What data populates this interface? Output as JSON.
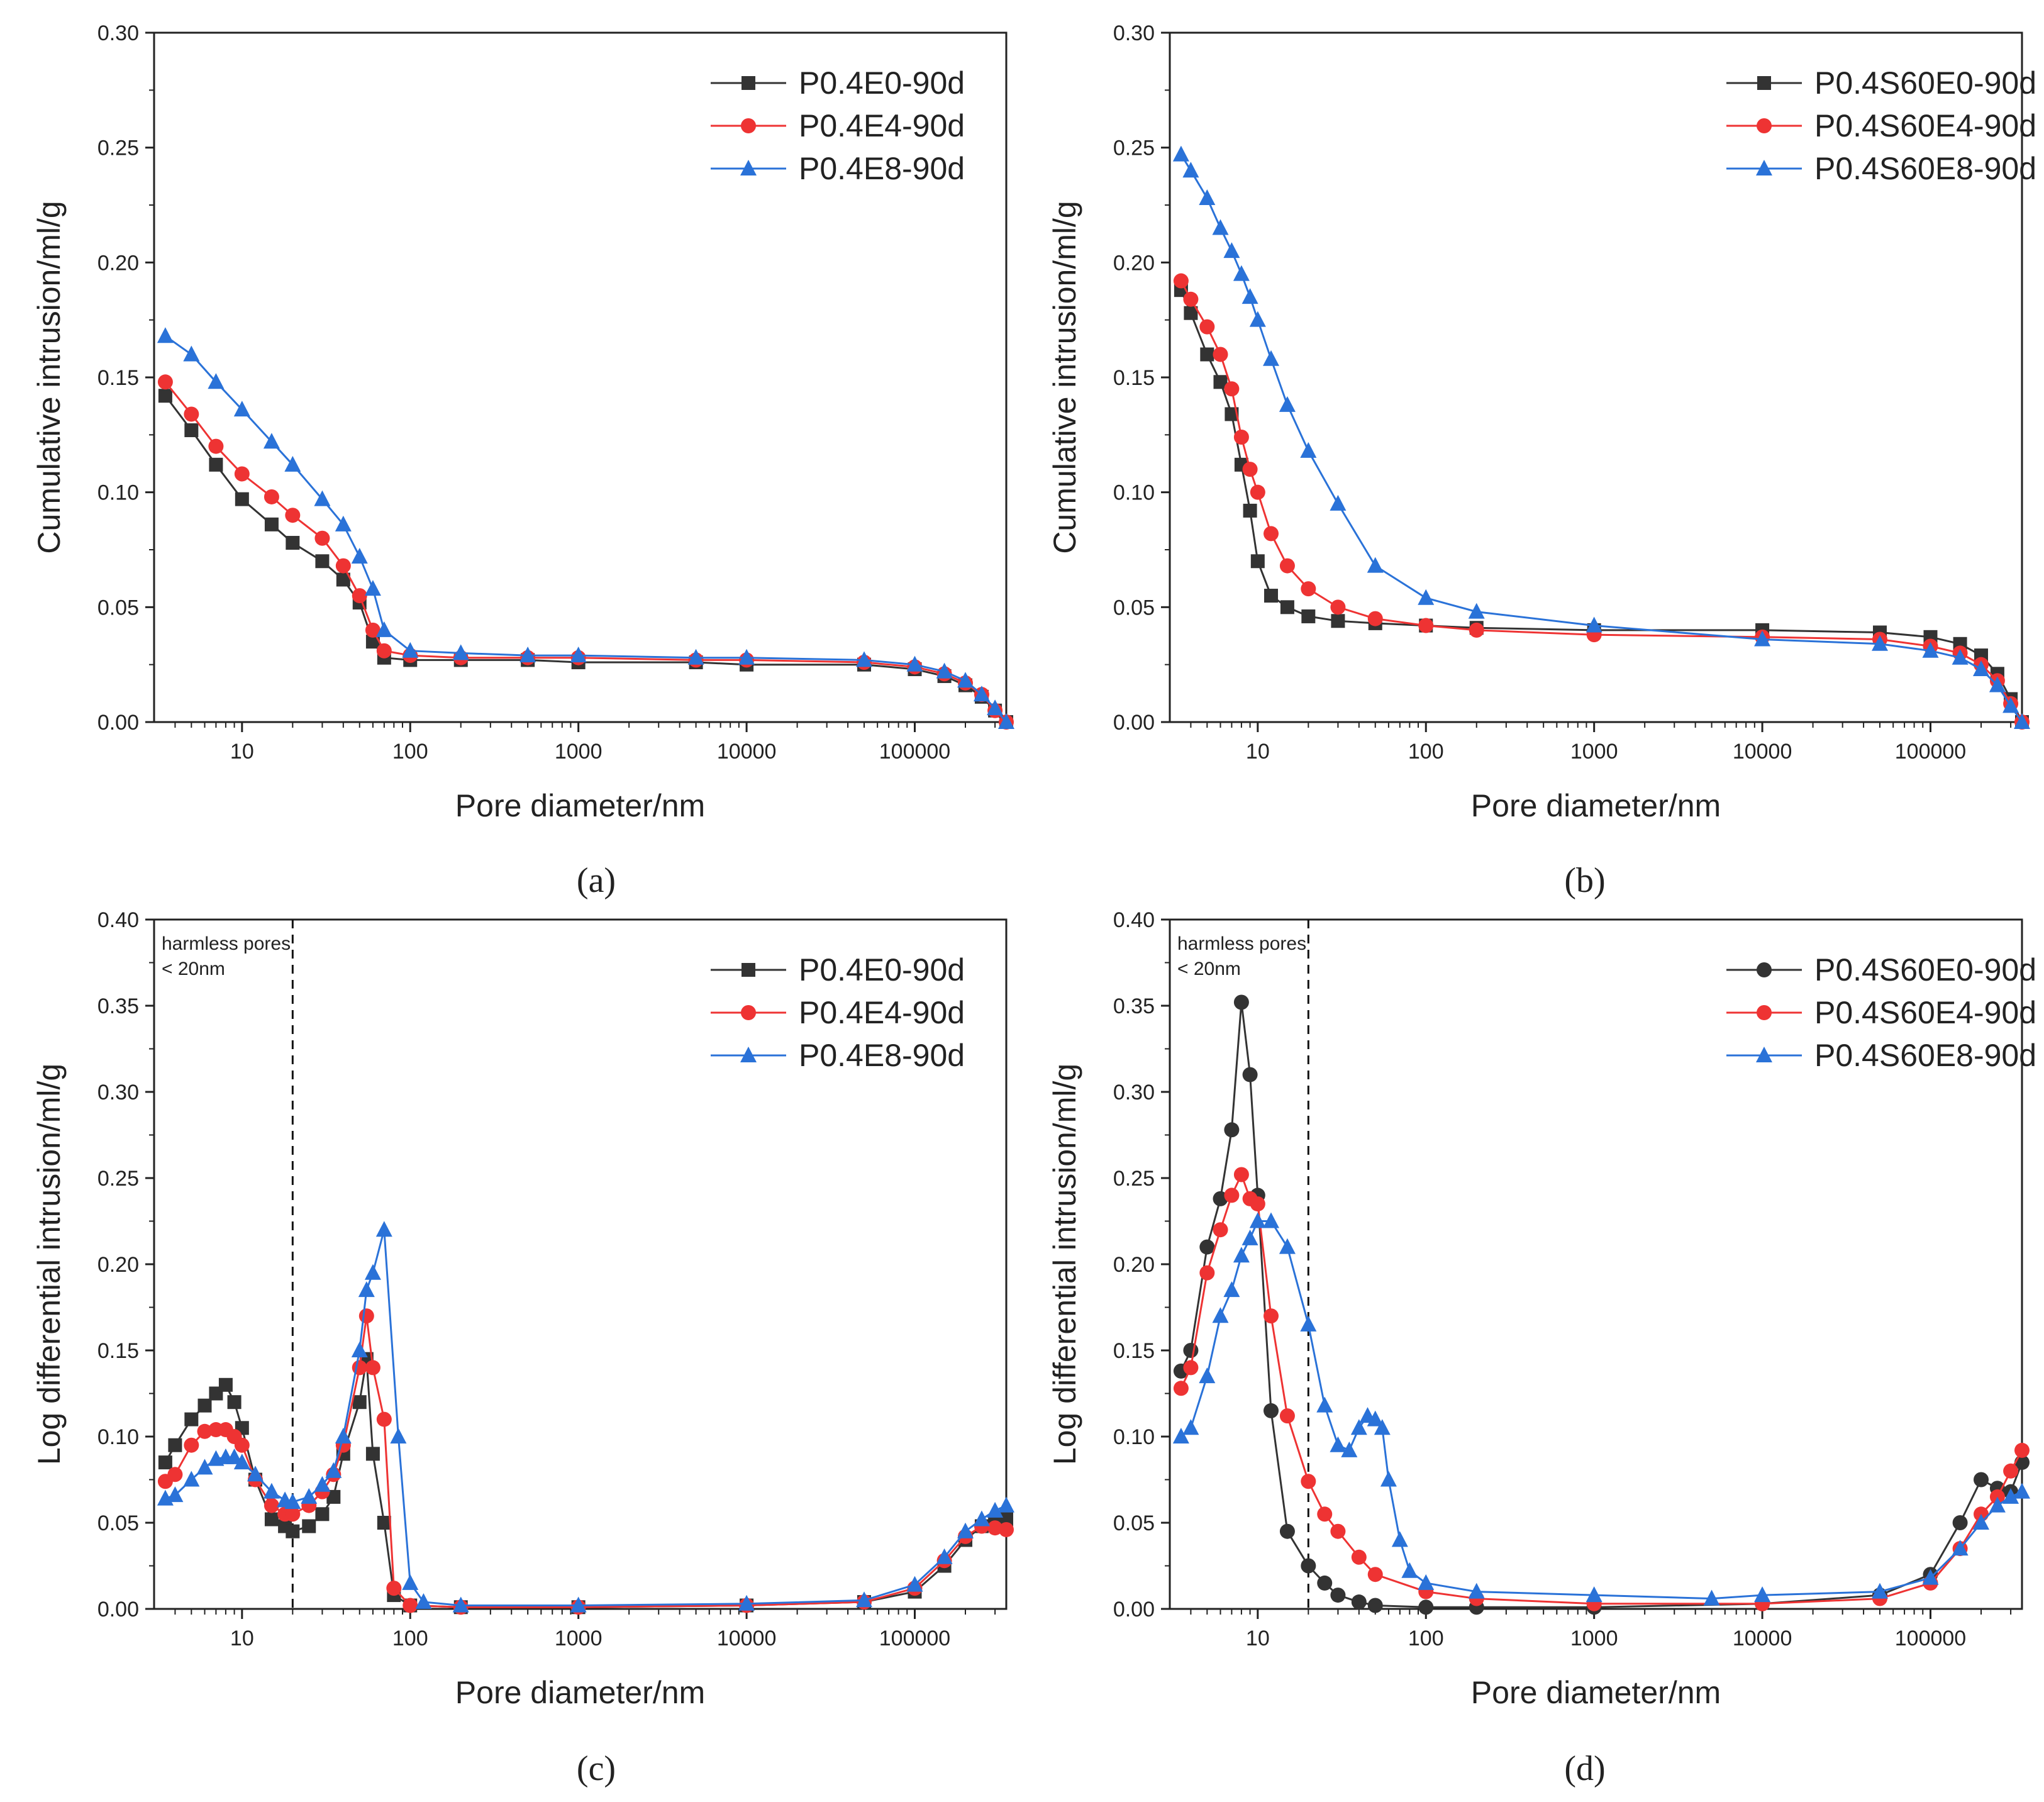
{
  "figure": {
    "caption_a": "(a)",
    "caption_b": "(b)",
    "caption_c": "(c)",
    "caption_d": "(d)"
  },
  "colors": {
    "black": "#333333",
    "red": "#ee3333",
    "blue": "#2a72d8"
  },
  "chart_data": [
    {
      "id": "a",
      "type": "line",
      "title": "",
      "xlabel": "Pore diameter/nm",
      "ylabel": "Cumulative intrusion/ml/g",
      "xscale": "log",
      "xlim": [
        3,
        350000
      ],
      "ylim": [
        0,
        0.3
      ],
      "yticks": [
        "0.00",
        "0.05",
        "0.10",
        "0.15",
        "0.20",
        "0.25",
        "0.30"
      ],
      "xticks": [
        "10",
        "100",
        "1000",
        "10000",
        "100000"
      ],
      "legend_position": "top-right",
      "series": [
        {
          "name": "P0.4E0-90d",
          "marker": "square",
          "color": "#333333",
          "x": [
            3.5,
            5,
            7,
            10,
            15,
            20,
            30,
            40,
            50,
            60,
            70,
            100,
            200,
            500,
            1000,
            5000,
            10000,
            50000,
            100000,
            150000,
            200000,
            250000,
            300000,
            350000
          ],
          "y": [
            0.142,
            0.127,
            0.112,
            0.097,
            0.086,
            0.078,
            0.07,
            0.062,
            0.052,
            0.035,
            0.028,
            0.027,
            0.027,
            0.027,
            0.026,
            0.026,
            0.025,
            0.025,
            0.023,
            0.02,
            0.016,
            0.011,
            0.005,
            0.0
          ]
        },
        {
          "name": "P0.4E4-90d",
          "marker": "circle",
          "color": "#ee3333",
          "x": [
            3.5,
            5,
            7,
            10,
            15,
            20,
            30,
            40,
            50,
            60,
            70,
            100,
            200,
            500,
            1000,
            5000,
            10000,
            50000,
            100000,
            150000,
            200000,
            250000,
            300000,
            350000
          ],
          "y": [
            0.148,
            0.134,
            0.12,
            0.108,
            0.098,
            0.09,
            0.08,
            0.068,
            0.055,
            0.04,
            0.031,
            0.029,
            0.028,
            0.028,
            0.028,
            0.027,
            0.027,
            0.026,
            0.024,
            0.021,
            0.017,
            0.012,
            0.005,
            0.0
          ]
        },
        {
          "name": "P0.4E8-90d",
          "marker": "triangle",
          "color": "#2a72d8",
          "x": [
            3.5,
            5,
            7,
            10,
            15,
            20,
            30,
            40,
            50,
            60,
            70,
            100,
            200,
            500,
            1000,
            5000,
            10000,
            50000,
            100000,
            150000,
            200000,
            250000,
            300000,
            350000
          ],
          "y": [
            0.168,
            0.16,
            0.148,
            0.136,
            0.122,
            0.112,
            0.097,
            0.086,
            0.072,
            0.058,
            0.04,
            0.031,
            0.03,
            0.029,
            0.029,
            0.028,
            0.028,
            0.027,
            0.025,
            0.022,
            0.018,
            0.012,
            0.006,
            0.0
          ]
        }
      ]
    },
    {
      "id": "b",
      "type": "line",
      "title": "",
      "xlabel": "Pore diameter/nm",
      "ylabel": "Cumulative intrusion/ml/g",
      "xscale": "log",
      "xlim": [
        3,
        350000
      ],
      "ylim": [
        0,
        0.3
      ],
      "yticks": [
        "0.00",
        "0.05",
        "0.10",
        "0.15",
        "0.20",
        "0.25",
        "0.30"
      ],
      "xticks": [
        "10",
        "100",
        "1000",
        "10000",
        "100000"
      ],
      "legend_position": "top-right",
      "series": [
        {
          "name": "P0.4S60E0-90d",
          "marker": "square",
          "color": "#333333",
          "x": [
            3.5,
            4,
            5,
            6,
            7,
            8,
            9,
            10,
            12,
            15,
            20,
            30,
            50,
            100,
            200,
            1000,
            10000,
            50000,
            100000,
            150000,
            200000,
            250000,
            300000,
            350000
          ],
          "y": [
            0.188,
            0.178,
            0.16,
            0.148,
            0.134,
            0.112,
            0.092,
            0.07,
            0.055,
            0.05,
            0.046,
            0.044,
            0.043,
            0.042,
            0.041,
            0.04,
            0.04,
            0.039,
            0.037,
            0.034,
            0.029,
            0.021,
            0.01,
            0.0
          ]
        },
        {
          "name": "P0.4S60E4-90d",
          "marker": "circle",
          "color": "#ee3333",
          "x": [
            3.5,
            4,
            5,
            6,
            7,
            8,
            9,
            10,
            12,
            15,
            20,
            30,
            50,
            100,
            200,
            1000,
            10000,
            50000,
            100000,
            150000,
            200000,
            250000,
            300000,
            350000
          ],
          "y": [
            0.192,
            0.184,
            0.172,
            0.16,
            0.145,
            0.124,
            0.11,
            0.1,
            0.082,
            0.068,
            0.058,
            0.05,
            0.045,
            0.042,
            0.04,
            0.038,
            0.037,
            0.036,
            0.033,
            0.03,
            0.025,
            0.018,
            0.008,
            0.0
          ]
        },
        {
          "name": "P0.4S60E8-90d",
          "marker": "triangle",
          "color": "#2a72d8",
          "x": [
            3.5,
            4,
            5,
            6,
            7,
            8,
            9,
            10,
            12,
            15,
            20,
            30,
            50,
            100,
            200,
            1000,
            10000,
            50000,
            100000,
            150000,
            200000,
            250000,
            300000,
            350000
          ],
          "y": [
            0.247,
            0.24,
            0.228,
            0.215,
            0.205,
            0.195,
            0.185,
            0.175,
            0.158,
            0.138,
            0.118,
            0.095,
            0.068,
            0.054,
            0.048,
            0.042,
            0.036,
            0.034,
            0.031,
            0.028,
            0.023,
            0.016,
            0.007,
            0.0
          ]
        }
      ]
    },
    {
      "id": "c",
      "type": "line",
      "title": "",
      "xlabel": "Pore diameter/nm",
      "ylabel": "Log differential intrusion/ml/g",
      "xscale": "log",
      "xlim": [
        3,
        350000
      ],
      "ylim": [
        0,
        0.4
      ],
      "yticks": [
        "0.00",
        "0.05",
        "0.10",
        "0.15",
        "0.20",
        "0.25",
        "0.30",
        "0.35",
        "0.40"
      ],
      "xticks": [
        "10",
        "100",
        "1000",
        "10000",
        "100000"
      ],
      "legend_position": "top-right",
      "annotation": {
        "line1": "harmless pores",
        "line2": "< 20nm",
        "x": 20
      },
      "series": [
        {
          "name": "P0.4E0-90d",
          "marker": "square",
          "color": "#333333",
          "x": [
            3.5,
            4,
            5,
            6,
            7,
            8,
            9,
            10,
            12,
            15,
            18,
            20,
            25,
            30,
            35,
            40,
            50,
            55,
            60,
            70,
            80,
            100,
            200,
            1000,
            10000,
            50000,
            100000,
            150000,
            200000,
            250000,
            300000,
            350000
          ],
          "y": [
            0.085,
            0.095,
            0.11,
            0.118,
            0.125,
            0.13,
            0.12,
            0.105,
            0.075,
            0.052,
            0.048,
            0.045,
            0.048,
            0.055,
            0.065,
            0.09,
            0.12,
            0.145,
            0.09,
            0.05,
            0.008,
            0.002,
            0.001,
            0.001,
            0.002,
            0.004,
            0.01,
            0.025,
            0.04,
            0.048,
            0.05,
            0.052
          ]
        },
        {
          "name": "P0.4E4-90d",
          "marker": "circle",
          "color": "#ee3333",
          "x": [
            3.5,
            4,
            5,
            6,
            7,
            8,
            9,
            10,
            12,
            15,
            18,
            20,
            25,
            30,
            35,
            40,
            50,
            55,
            60,
            70,
            80,
            100,
            200,
            1000,
            10000,
            50000,
            100000,
            150000,
            200000,
            250000,
            300000,
            350000
          ],
          "y": [
            0.074,
            0.078,
            0.095,
            0.103,
            0.104,
            0.104,
            0.1,
            0.095,
            0.075,
            0.06,
            0.055,
            0.055,
            0.06,
            0.068,
            0.078,
            0.095,
            0.14,
            0.17,
            0.14,
            0.11,
            0.012,
            0.002,
            0.001,
            0.001,
            0.002,
            0.004,
            0.012,
            0.028,
            0.042,
            0.048,
            0.047,
            0.046
          ]
        },
        {
          "name": "P0.4E8-90d",
          "marker": "triangle",
          "color": "#2a72d8",
          "x": [
            3.5,
            4,
            5,
            6,
            7,
            8,
            9,
            10,
            12,
            15,
            18,
            20,
            25,
            30,
            35,
            40,
            50,
            55,
            60,
            70,
            85,
            100,
            120,
            200,
            1000,
            10000,
            50000,
            100000,
            150000,
            200000,
            250000,
            300000,
            350000
          ],
          "y": [
            0.064,
            0.066,
            0.075,
            0.082,
            0.087,
            0.088,
            0.088,
            0.085,
            0.078,
            0.068,
            0.063,
            0.062,
            0.065,
            0.072,
            0.08,
            0.1,
            0.15,
            0.185,
            0.195,
            0.22,
            0.1,
            0.015,
            0.004,
            0.002,
            0.002,
            0.003,
            0.005,
            0.014,
            0.03,
            0.045,
            0.052,
            0.057,
            0.06
          ]
        }
      ]
    },
    {
      "id": "d",
      "type": "line",
      "title": "",
      "xlabel": "Pore diameter/nm",
      "ylabel": "Log differential intrusion/ml/g",
      "xscale": "log",
      "xlim": [
        3,
        350000
      ],
      "ylim": [
        0,
        0.4
      ],
      "yticks": [
        "0.00",
        "0.05",
        "0.10",
        "0.15",
        "0.20",
        "0.25",
        "0.30",
        "0.35",
        "0.40"
      ],
      "xticks": [
        "10",
        "100",
        "1000",
        "10000",
        "100000"
      ],
      "legend_position": "top-right",
      "annotation": {
        "line1": "harmless pores",
        "line2": "< 20nm",
        "x": 20
      },
      "series": [
        {
          "name": "P0.4S60E0-90d",
          "marker": "circle",
          "color": "#333333",
          "x": [
            3.5,
            4,
            5,
            6,
            7,
            8,
            9,
            10,
            12,
            15,
            20,
            25,
            30,
            40,
            50,
            100,
            200,
            1000,
            10000,
            50000,
            100000,
            150000,
            200000,
            250000,
            300000,
            350000
          ],
          "y": [
            0.138,
            0.15,
            0.21,
            0.238,
            0.278,
            0.352,
            0.31,
            0.24,
            0.115,
            0.045,
            0.025,
            0.015,
            0.008,
            0.004,
            0.002,
            0.001,
            0.001,
            0.001,
            0.003,
            0.008,
            0.02,
            0.05,
            0.075,
            0.07,
            0.068,
            0.085
          ]
        },
        {
          "name": "P0.4S60E4-90d",
          "marker": "circle",
          "color": "#ee3333",
          "x": [
            3.5,
            4,
            5,
            6,
            7,
            8,
            9,
            10,
            12,
            15,
            20,
            25,
            30,
            40,
            50,
            100,
            200,
            1000,
            10000,
            50000,
            100000,
            150000,
            200000,
            250000,
            300000,
            350000
          ],
          "y": [
            0.128,
            0.14,
            0.195,
            0.22,
            0.24,
            0.252,
            0.238,
            0.235,
            0.17,
            0.112,
            0.074,
            0.055,
            0.045,
            0.03,
            0.02,
            0.01,
            0.006,
            0.003,
            0.003,
            0.006,
            0.015,
            0.035,
            0.055,
            0.065,
            0.08,
            0.092
          ]
        },
        {
          "name": "P0.4S60E8-90d",
          "marker": "triangle",
          "color": "#2a72d8",
          "x": [
            3.5,
            4,
            5,
            6,
            7,
            8,
            9,
            10,
            12,
            15,
            20,
            25,
            30,
            35,
            40,
            45,
            50,
            55,
            60,
            70,
            80,
            100,
            200,
            1000,
            5000,
            10000,
            50000,
            100000,
            150000,
            200000,
            250000,
            300000,
            350000
          ],
          "y": [
            0.1,
            0.105,
            0.135,
            0.17,
            0.185,
            0.205,
            0.215,
            0.225,
            0.225,
            0.21,
            0.165,
            0.118,
            0.095,
            0.092,
            0.105,
            0.112,
            0.11,
            0.105,
            0.075,
            0.04,
            0.022,
            0.015,
            0.01,
            0.008,
            0.006,
            0.008,
            0.01,
            0.018,
            0.035,
            0.05,
            0.06,
            0.065,
            0.068
          ]
        }
      ]
    }
  ]
}
